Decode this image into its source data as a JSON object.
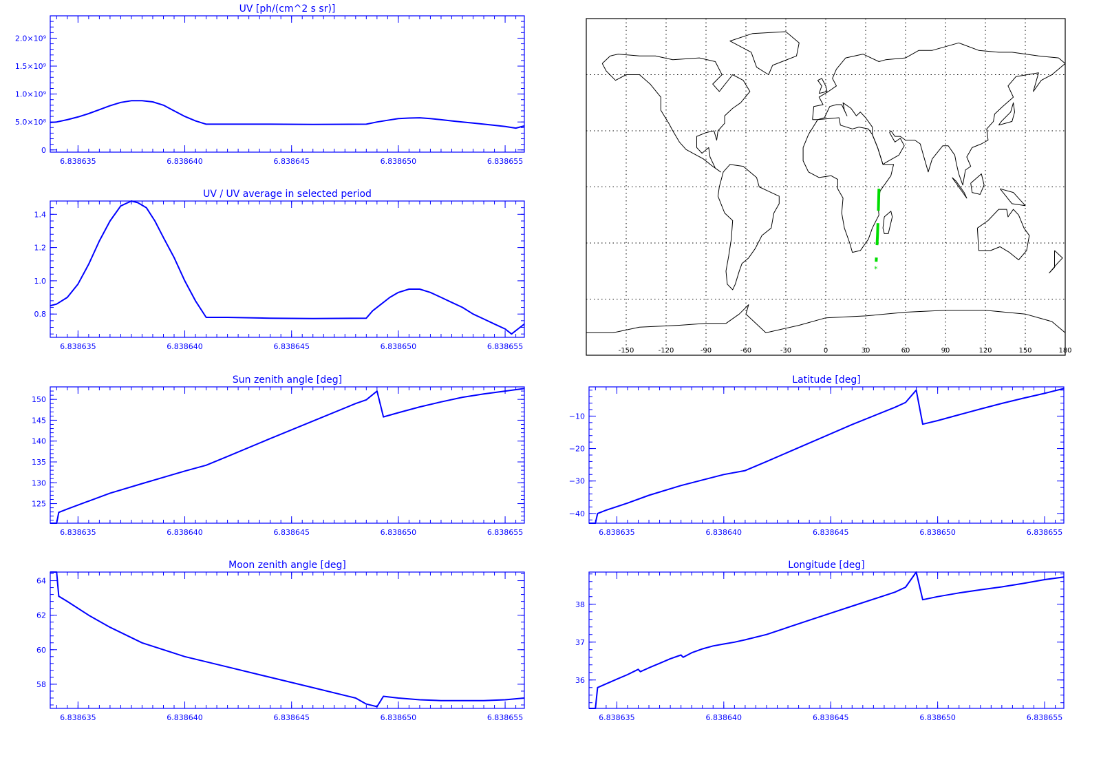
{
  "colors": {
    "axis": "#0000ff",
    "line": "#0000ff",
    "map_line": "#000000",
    "track": "#00dd00",
    "background": "#ffffff"
  },
  "chart_data": [
    {
      "id": "uv",
      "type": "line",
      "title": "UV [ph/(cm^2 s sr)]",
      "xlabel": "",
      "ylabel": "",
      "xlim": [
        6.8386337,
        6.8386559
      ],
      "ylim": [
        -40000000,
        2400000000
      ],
      "xticks": [
        6.838635,
        6.83864,
        6.838645,
        6.83865,
        6.838655
      ],
      "xtick_labels": [
        "6.838635",
        "6.838640",
        "6.838645",
        "6.838650",
        "6.838655"
      ],
      "yticks": [
        0,
        500000000,
        1000000000,
        1500000000,
        2000000000
      ],
      "ytick_labels": [
        "0",
        "5.0×10⁸",
        "1.0×10⁹",
        "1.5×10⁹",
        "2.0×10⁹"
      ],
      "series": [
        {
          "x": [
            6.8386337,
            6.838634,
            6.8386345,
            6.838635,
            6.8386355,
            6.838636,
            6.8386365,
            6.838637,
            6.8386375,
            6.838638,
            6.8386385,
            6.838639,
            6.8386395,
            6.83864,
            6.8386405,
            6.838641,
            6.838642,
            6.838644,
            6.838646,
            6.8386485,
            6.838649,
            6.8386495,
            6.83865,
            6.8386505,
            6.838651,
            6.8386515,
            6.838652,
            6.8386525,
            6.838653,
            6.8386535,
            6.838654,
            6.8386545,
            6.838655,
            6.8386555,
            6.8386559
          ],
          "y": [
            490000000,
            500000000,
            540000000,
            590000000,
            650000000,
            720000000,
            790000000,
            850000000,
            880000000,
            880000000,
            860000000,
            800000000,
            700000000,
            600000000,
            520000000,
            460000000,
            460000000,
            460000000,
            455000000,
            460000000,
            500000000,
            530000000,
            560000000,
            570000000,
            575000000,
            560000000,
            540000000,
            520000000,
            500000000,
            480000000,
            460000000,
            440000000,
            420000000,
            390000000,
            430000000
          ]
        }
      ]
    },
    {
      "id": "ratio",
      "type": "line",
      "title": "UV / UV average in selected period",
      "xlabel": "",
      "ylabel": "",
      "xlim": [
        6.8386337,
        6.8386559
      ],
      "ylim": [
        0.66,
        1.48
      ],
      "xticks": [
        6.838635,
        6.83864,
        6.838645,
        6.83865,
        6.838655
      ],
      "xtick_labels": [
        "6.838635",
        "6.838640",
        "6.838645",
        "6.838650",
        "6.838655"
      ],
      "yticks": [
        0.8,
        1.0,
        1.2,
        1.4
      ],
      "ytick_labels": [
        "0.8",
        "1.0",
        "1.2",
        "1.4"
      ],
      "series": [
        {
          "x": [
            6.8386337,
            6.838634,
            6.8386345,
            6.838635,
            6.8386355,
            6.838636,
            6.8386365,
            6.838637,
            6.8386375,
            6.8386378,
            6.8386382,
            6.8386386,
            6.838639,
            6.8386395,
            6.83864,
            6.8386405,
            6.838641,
            6.838642,
            6.838644,
            6.838646,
            6.8386485,
            6.8386488,
            6.8386492,
            6.8386496,
            6.83865,
            6.8386505,
            6.838651,
            6.8386515,
            6.838652,
            6.8386525,
            6.838653,
            6.8386535,
            6.838654,
            6.8386545,
            6.838655,
            6.8386553,
            6.8386556,
            6.8386559
          ],
          "y": [
            0.85,
            0.86,
            0.9,
            0.98,
            1.1,
            1.24,
            1.36,
            1.45,
            1.48,
            1.47,
            1.44,
            1.36,
            1.26,
            1.14,
            1.0,
            0.88,
            0.78,
            0.78,
            0.775,
            0.773,
            0.775,
            0.82,
            0.86,
            0.9,
            0.93,
            0.95,
            0.95,
            0.93,
            0.9,
            0.87,
            0.84,
            0.8,
            0.77,
            0.74,
            0.71,
            0.68,
            0.71,
            0.74
          ]
        }
      ]
    },
    {
      "id": "sun",
      "type": "line",
      "title": "Sun zenith angle [deg]",
      "xlabel": "",
      "ylabel": "",
      "xlim": [
        6.8386337,
        6.8386559
      ],
      "ylim": [
        120.3,
        153.0
      ],
      "xticks": [
        6.838635,
        6.83864,
        6.838645,
        6.83865,
        6.838655
      ],
      "xtick_labels": [
        "6.838635",
        "6.838640",
        "6.838645",
        "6.838650",
        "6.838655"
      ],
      "yticks": [
        125,
        130,
        135,
        140,
        145,
        150
      ],
      "ytick_labels": [
        "125",
        "130",
        "135",
        "140",
        "145",
        "150"
      ],
      "series": [
        {
          "x": [
            6.8386337,
            6.838634,
            6.8386341,
            6.8386345,
            6.8386355,
            6.8386365,
            6.838638,
            6.83864,
            6.838641,
            6.838642,
            6.838644,
            6.838646,
            6.838648,
            6.8386485,
            6.838649,
            6.8386493,
            6.83865,
            6.838651,
            6.838652,
            6.838653,
            6.838654,
            6.838655,
            6.8386559
          ],
          "y": [
            120.3,
            120.3,
            122.9,
            123.7,
            125.6,
            127.5,
            129.8,
            132.8,
            134.2,
            136.3,
            140.6,
            144.8,
            149.0,
            149.9,
            152.0,
            145.8,
            146.8,
            148.2,
            149.4,
            150.5,
            151.3,
            152.0,
            152.6
          ]
        }
      ]
    },
    {
      "id": "lat",
      "type": "line",
      "title": "Latitude [deg]",
      "xlabel": "",
      "ylabel": "",
      "xlim": [
        6.8386337,
        6.8386559
      ],
      "ylim": [
        -43.0,
        -1.0
      ],
      "xticks": [
        6.838635,
        6.83864,
        6.838645,
        6.83865,
        6.838655
      ],
      "xtick_labels": [
        "6.838635",
        "6.838640",
        "6.838645",
        "6.838650",
        "6.838655"
      ],
      "yticks": [
        -40,
        -30,
        -20,
        -10
      ],
      "ytick_labels": [
        "−40",
        "−30",
        "−20",
        "−10"
      ],
      "series": [
        {
          "x": [
            6.8386337,
            6.838634,
            6.8386341,
            6.8386345,
            6.8386355,
            6.8386365,
            6.838638,
            6.83864,
            6.838641,
            6.838642,
            6.838644,
            6.838646,
            6.838648,
            6.8386485,
            6.838649,
            6.8386493,
            6.83865,
            6.838651,
            6.838652,
            6.838653,
            6.838654,
            6.838655,
            6.8386559
          ],
          "y": [
            -43.0,
            -43.0,
            -40.0,
            -39.0,
            -36.8,
            -34.4,
            -31.4,
            -28.0,
            -26.8,
            -24.0,
            -18.3,
            -12.6,
            -7.3,
            -5.8,
            -2.0,
            -12.5,
            -11.4,
            -9.6,
            -7.8,
            -6.1,
            -4.5,
            -3.0,
            -1.5
          ]
        }
      ]
    },
    {
      "id": "moon",
      "type": "line",
      "title": "Moon zenith angle [deg]",
      "xlabel": "",
      "ylabel": "",
      "xlim": [
        6.8386337,
        6.8386559
      ],
      "ylim": [
        56.6,
        64.5
      ],
      "xticks": [
        6.838635,
        6.83864,
        6.838645,
        6.83865,
        6.838655
      ],
      "xtick_labels": [
        "6.838635",
        "6.838640",
        "6.838645",
        "6.838650",
        "6.838655"
      ],
      "yticks": [
        58,
        60,
        62,
        64
      ],
      "ytick_labels": [
        "58",
        "60",
        "62",
        "64"
      ],
      "series": [
        {
          "x": [
            6.8386337,
            6.838634,
            6.8386341,
            6.8386345,
            6.8386355,
            6.8386365,
            6.838638,
            6.83864,
            6.838641,
            6.838642,
            6.838644,
            6.838646,
            6.838648,
            6.8386485,
            6.838649,
            6.8386493,
            6.83865,
            6.838651,
            6.838652,
            6.838653,
            6.838654,
            6.838655,
            6.8386559
          ],
          "y": [
            64.5,
            64.5,
            63.1,
            62.8,
            62.0,
            61.3,
            60.4,
            59.6,
            59.3,
            59.0,
            58.4,
            57.8,
            57.2,
            56.85,
            56.7,
            57.3,
            57.2,
            57.1,
            57.05,
            57.05,
            57.05,
            57.1,
            57.2
          ]
        }
      ]
    },
    {
      "id": "lon",
      "type": "line",
      "title": "Longitude [deg]",
      "xlabel": "",
      "ylabel": "",
      "xlim": [
        6.8386337,
        6.8386559
      ],
      "ylim": [
        35.25,
        38.85
      ],
      "xticks": [
        6.838635,
        6.83864,
        6.838645,
        6.83865,
        6.838655
      ],
      "xtick_labels": [
        "6.838635",
        "6.838640",
        "6.838645",
        "6.838650",
        "6.838655"
      ],
      "yticks": [
        36,
        37,
        38
      ],
      "ytick_labels": [
        "36",
        "37",
        "38"
      ],
      "series": [
        {
          "x": [
            6.8386337,
            6.838634,
            6.8386341,
            6.8386345,
            6.838635,
            6.8386355,
            6.838636,
            6.8386361,
            6.8386365,
            6.838637,
            6.8386375,
            6.838638,
            6.8386381,
            6.8386385,
            6.838639,
            6.8386395,
            6.83864,
            6.8386405,
            6.838641,
            6.838642,
            6.838644,
            6.838646,
            6.838648,
            6.8386485,
            6.838649,
            6.8386493,
            6.83865,
            6.838651,
            6.838652,
            6.838653,
            6.838654,
            6.838655,
            6.8386559
          ],
          "y": [
            35.25,
            35.25,
            35.8,
            35.9,
            36.02,
            36.14,
            36.28,
            36.22,
            36.32,
            36.44,
            36.56,
            36.66,
            36.6,
            36.72,
            36.82,
            36.9,
            36.95,
            37.0,
            37.06,
            37.2,
            37.58,
            37.95,
            38.32,
            38.45,
            38.85,
            38.12,
            38.2,
            38.3,
            38.38,
            38.46,
            38.55,
            38.65,
            38.72
          ]
        }
      ]
    }
  ],
  "map": {
    "xticks": [
      -150,
      -120,
      -90,
      -60,
      -30,
      0,
      30,
      60,
      90,
      120,
      150,
      180
    ],
    "xtick_labels": [
      "-150",
      "-120",
      "-90",
      "-60",
      "-30",
      "0",
      "30",
      "60",
      "90",
      "120",
      "150",
      "180"
    ],
    "lon_range": [
      -180,
      180
    ],
    "lat_range": [
      -90,
      90
    ],
    "gridline_lats": [
      -60,
      -30,
      0,
      30,
      60
    ],
    "track": [
      {
        "lon": 40.0,
        "lat": -1.0
      },
      {
        "lon": 39.6,
        "lat": -11.0
      },
      {
        "lon": 38.9,
        "lat": -26.0
      },
      {
        "lon": 37.9,
        "lat": -40.0
      }
    ],
    "start_marker": {
      "lon": 37.6,
      "lat": -43.0,
      "symbol": "*"
    }
  }
}
